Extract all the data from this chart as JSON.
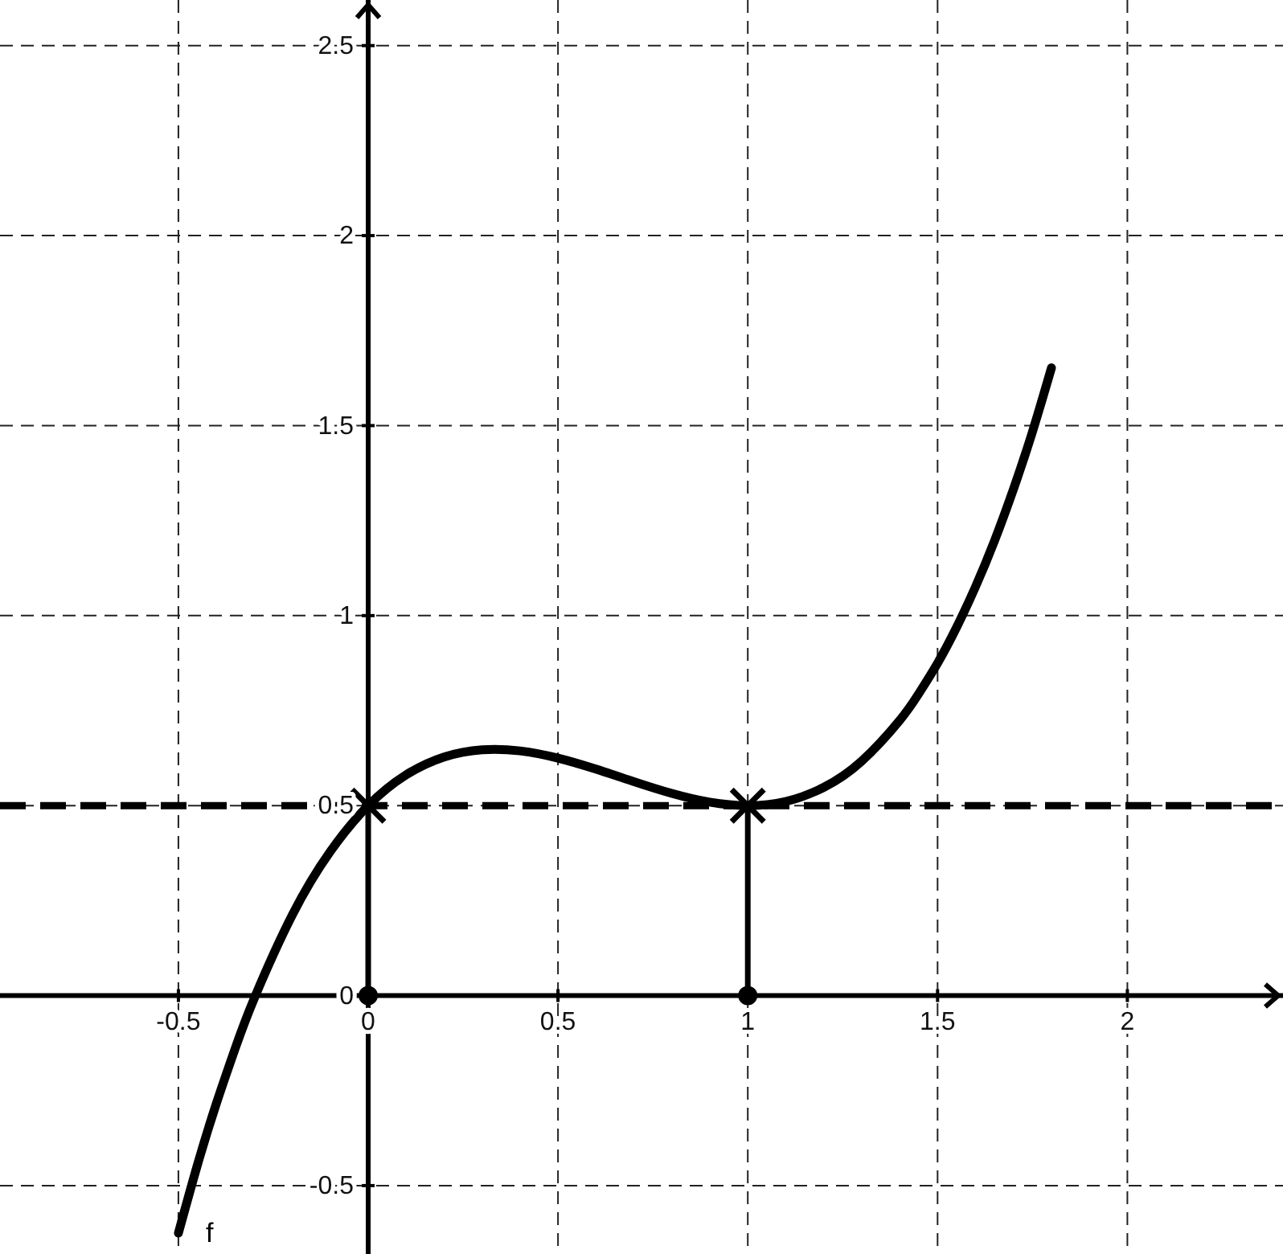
{
  "chart_data": {
    "type": "line",
    "xlim": [
      -0.97,
      2.41
    ],
    "ylim": [
      -0.68,
      2.62
    ],
    "xticks": [
      -0.5,
      0,
      0.5,
      1,
      1.5,
      2
    ],
    "yticks": [
      -0.5,
      0,
      0.5,
      1,
      1.5,
      2,
      2.5
    ],
    "grid": true,
    "series": [
      {
        "name": "f",
        "color": "#000000",
        "x": [
          -0.5,
          -0.45,
          -0.4,
          -0.35,
          -0.3,
          -0.2,
          -0.1,
          0,
          0.1,
          0.2,
          0.3,
          0.4,
          0.5,
          0.6,
          0.7,
          0.8,
          0.9,
          1,
          1.1,
          1.2,
          1.3,
          1.4,
          1.45,
          1.5,
          1.55,
          1.6,
          1.65,
          1.7,
          1.75,
          1.8
        ],
        "values": [
          -0.625,
          -0.446,
          -0.284,
          -0.138,
          -0.007,
          0.212,
          0.379,
          0.5,
          0.581,
          0.628,
          0.647,
          0.644,
          0.625,
          0.596,
          0.563,
          0.532,
          0.509,
          0.5,
          0.511,
          0.548,
          0.617,
          0.724,
          0.794,
          0.875,
          0.969,
          1.076,
          1.197,
          1.333,
          1.484,
          1.652
        ]
      },
      {
        "color": "#000000",
        "x": [
          0,
          0
        ],
        "values": [
          0,
          0.5
        ]
      },
      {
        "color": "#000000",
        "x": [
          1,
          1
        ],
        "values": [
          0,
          0.5
        ]
      },
      {
        "type": "scatter",
        "color": "#000000",
        "marker": "circle",
        "x": [
          0,
          1
        ],
        "values": [
          0,
          0
        ]
      },
      {
        "type": "scatter",
        "color": "#000000",
        "marker": "cross",
        "x": [
          0,
          1
        ],
        "values": [
          0.5,
          0.5
        ]
      }
    ],
    "ref_lines": [
      {
        "axis": "y",
        "value": 0.5,
        "color": "#000000",
        "line_style": "dashed"
      }
    ]
  }
}
